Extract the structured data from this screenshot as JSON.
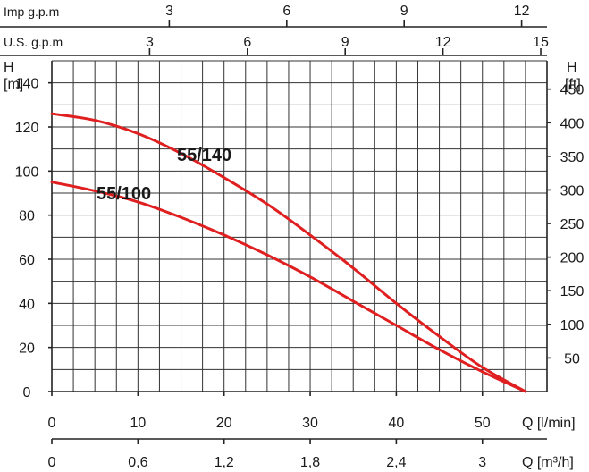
{
  "chart_data": {
    "type": "line",
    "x": {
      "label": "Q [l/min]",
      "range": [
        0,
        57.5
      ],
      "ticks": [
        0,
        10,
        20,
        30,
        40,
        50
      ]
    },
    "y": {
      "label": "H\n[m]",
      "range": [
        0,
        150
      ],
      "ticks": [
        0,
        20,
        40,
        60,
        80,
        100,
        120,
        140
      ]
    },
    "y_right": {
      "label": "H\n[ft]",
      "ticks": [
        50,
        100,
        150,
        200,
        250,
        300,
        350,
        400,
        450
      ]
    },
    "x_top_imp": {
      "label": "Imp g.p.m",
      "ticks": [
        3,
        6,
        9,
        12
      ]
    },
    "x_top_us": {
      "label": "U.S. g.p.m",
      "ticks": [
        3,
        6,
        9,
        12,
        15
      ]
    },
    "x_bottom_m3h": {
      "label": "Q [m³/h]",
      "ticks": [
        "0",
        "0,6",
        "1,2",
        "1,8",
        "2,4",
        "3"
      ]
    },
    "grid": true,
    "series": [
      {
        "name": "55/140",
        "color": "#e02020",
        "x": [
          0,
          5,
          10,
          15,
          20,
          25,
          30,
          35,
          40,
          45,
          50,
          55
        ],
        "y": [
          126,
          123,
          117,
          108,
          97,
          85,
          71,
          56,
          40,
          25,
          11,
          0
        ]
      },
      {
        "name": "55/100",
        "color": "#e02020",
        "x": [
          0,
          5,
          10,
          15,
          20,
          25,
          30,
          35,
          40,
          45,
          50,
          55
        ],
        "y": [
          95,
          91,
          86,
          79,
          71,
          62,
          52,
          41,
          30,
          19,
          9,
          0
        ]
      }
    ]
  }
}
